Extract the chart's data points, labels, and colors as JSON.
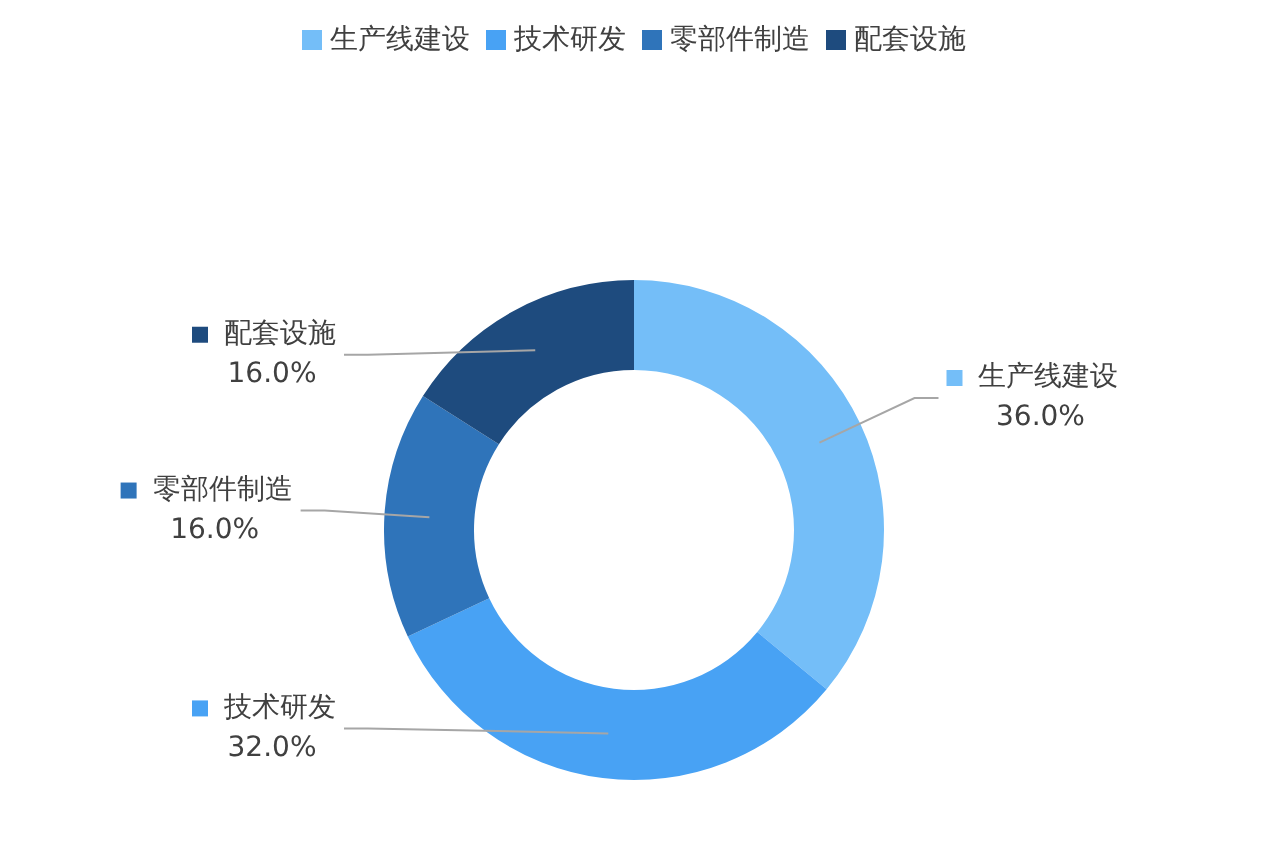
{
  "chart_data": {
    "type": "donut",
    "categories": [
      "生产线建设",
      "技术研发",
      "零部件制造",
      "配套设施"
    ],
    "values": [
      36,
      32,
      16,
      16
    ],
    "colors": [
      "#74bef8",
      "#48a2f4",
      "#2f74ba",
      "#1e4b7e"
    ],
    "value_labels": [
      "36.0%",
      "32.0%",
      "16.0%",
      "16.0%"
    ],
    "legend": "top"
  }
}
